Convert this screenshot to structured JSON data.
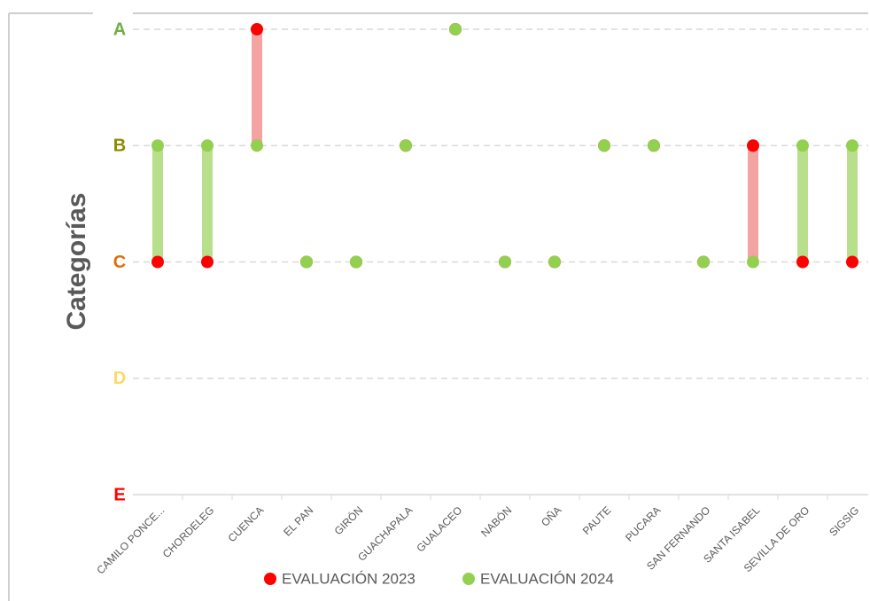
{
  "chart_data": {
    "type": "dumbbell",
    "y_label": "Categorías",
    "categories": [
      "CAMILO PONCE...",
      "CHORDELEG",
      "CUENCA",
      "EL PAN",
      "GIRÓN",
      "GUACHAPALA",
      "GUALACEO",
      "NABÓN",
      "OÑA",
      "PAUTE",
      "PUCARA",
      "SAN FERNANDO",
      "SANTA ISABEL",
      "SEVILLA DE ORO",
      "SIGSIG"
    ],
    "series": [
      {
        "name": "EVALUACIÓN 2023",
        "color": "#ff0000",
        "values": [
          3,
          3,
          5,
          3,
          3,
          4,
          5,
          3,
          3,
          4,
          4,
          3,
          4,
          3,
          3
        ]
      },
      {
        "name": "EVALUACIÓN 2024",
        "color": "#92d050",
        "values": [
          4,
          4,
          4,
          3,
          3,
          4,
          5,
          3,
          3,
          4,
          4,
          3,
          3,
          4,
          4
        ]
      }
    ],
    "ylim": [
      1,
      5
    ],
    "yticks": [
      {
        "value": 5,
        "label": "A"
      },
      {
        "value": 4,
        "label": "B"
      },
      {
        "value": 3,
        "label": "C"
      },
      {
        "value": 2,
        "label": "D"
      },
      {
        "value": 1,
        "label": "E"
      }
    ],
    "ytick_colors": [
      "#70ad47",
      "#8c8c00",
      "#e36c09",
      "#ffd966",
      "#ff0000"
    ],
    "up_color": "#b8e08c",
    "down_color": "#f4a3a3",
    "grid": true,
    "legend": "bottom"
  }
}
